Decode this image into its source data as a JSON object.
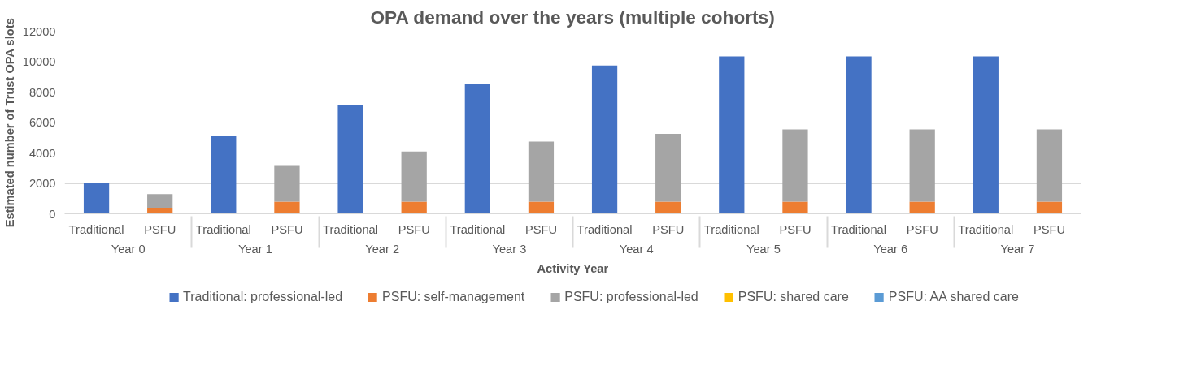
{
  "chart_data": {
    "type": "bar",
    "title": "OPA demand over the years (multiple cohorts)",
    "xlabel": "Activity Year",
    "ylabel": "Estimated number of Trust OPA slots",
    "categories": [
      "Traditional",
      "PSFU",
      "Traditional",
      "PSFU",
      "Traditional",
      "PSFU",
      "Traditional",
      "PSFU",
      "Traditional",
      "PSFU",
      "Traditional",
      "PSFU",
      "Traditional",
      "PSFU",
      "Traditional",
      "PSFU"
    ],
    "annotations": [
      "Year 0",
      "Year 1",
      "Year 2",
      "Year 3",
      "Year 4",
      "Year 5",
      "Year 6",
      "Year 7"
    ],
    "stacked": true,
    "series": [
      {
        "name": "Traditional: professional-led",
        "color": "#4472c4",
        "values": [
          2000,
          null,
          5150,
          null,
          7150,
          null,
          8550,
          null,
          9750,
          null,
          10350,
          null,
          10350,
          null,
          10350,
          null
        ]
      },
      {
        "name": "PSFU: self-management",
        "color": "#ed7d31",
        "values": [
          null,
          400,
          null,
          800,
          null,
          800,
          null,
          800,
          null,
          800,
          null,
          800,
          null,
          800,
          null,
          800
        ]
      },
      {
        "name": "PSFU: professional-led",
        "color": "#a5a5a5",
        "values": [
          null,
          900,
          null,
          2400,
          null,
          3300,
          null,
          3950,
          null,
          4450,
          null,
          4750,
          null,
          4750,
          null,
          4750
        ]
      },
      {
        "name": "PSFU: shared care",
        "color": "#ffc000",
        "values": [
          null,
          null,
          null,
          null,
          null,
          null,
          null,
          null,
          null,
          null,
          null,
          null,
          null,
          null,
          null,
          null
        ]
      },
      {
        "name": "PSFU: AA shared care",
        "color": "#5b9bd5",
        "values": [
          null,
          null,
          null,
          null,
          null,
          null,
          null,
          null,
          null,
          null,
          null,
          null,
          null,
          null,
          null,
          null
        ]
      }
    ],
    "ylim": [
      0,
      12000
    ],
    "yticks": [
      0,
      2000,
      4000,
      6000,
      8000,
      10000,
      12000
    ],
    "grid": "y",
    "legend": "bottom"
  }
}
